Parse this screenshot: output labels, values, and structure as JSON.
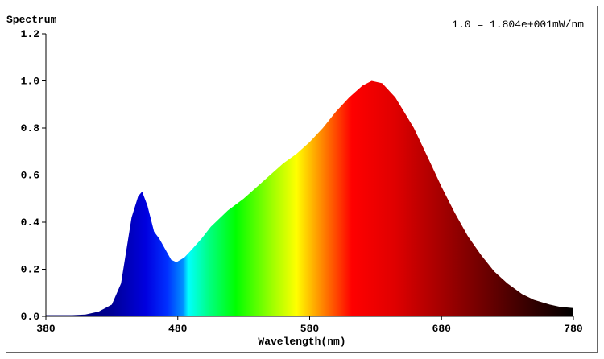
{
  "chart_data": {
    "type": "area",
    "title": "Spectrum",
    "annotation": "1.0 = 1.804e+001mW/nm",
    "xlabel": "Wavelength(nm)",
    "ylabel": "",
    "xlim": [
      380,
      780
    ],
    "ylim": [
      0,
      1.2
    ],
    "xticks": [
      "380",
      "480",
      "580",
      "680",
      "780"
    ],
    "yticks": [
      "0.0",
      "0.2",
      "0.4",
      "0.6",
      "0.8",
      "1.0",
      "1.2"
    ],
    "grid": false,
    "fill": "spectral-color-gradient",
    "x": [
      380,
      390,
      400,
      410,
      420,
      430,
      437,
      445,
      450,
      453,
      457,
      462,
      466,
      470,
      475,
      479,
      485,
      490,
      498,
      505,
      518,
      530,
      540,
      550,
      560,
      570,
      580,
      590,
      600,
      610,
      620,
      627,
      635,
      645,
      659,
      670,
      680,
      690,
      700,
      710,
      720,
      730,
      741,
      750,
      762,
      770,
      780
    ],
    "y": [
      0.005,
      0.005,
      0.005,
      0.008,
      0.02,
      0.05,
      0.14,
      0.42,
      0.51,
      0.53,
      0.47,
      0.36,
      0.33,
      0.29,
      0.24,
      0.23,
      0.25,
      0.28,
      0.33,
      0.38,
      0.45,
      0.5,
      0.55,
      0.6,
      0.65,
      0.69,
      0.74,
      0.8,
      0.87,
      0.93,
      0.98,
      1.0,
      0.99,
      0.93,
      0.8,
      0.67,
      0.55,
      0.44,
      0.34,
      0.26,
      0.19,
      0.14,
      0.095,
      0.07,
      0.05,
      0.04,
      0.035
    ]
  }
}
